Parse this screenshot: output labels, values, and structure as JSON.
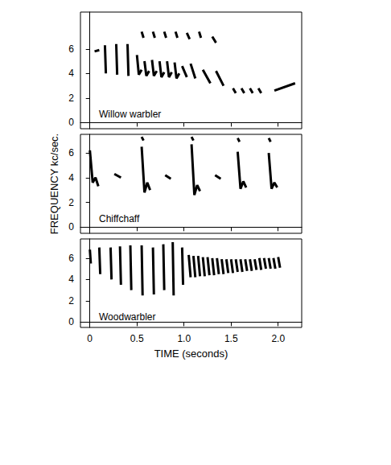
{
  "chart_data": [
    {
      "type": "line",
      "title": "Willow warbler",
      "color": "#000000",
      "grid": false,
      "tick_labels": "y",
      "xlim": [
        -0.1,
        2.25
      ],
      "xticks": [
        0,
        0.5,
        {
          "value": 1,
          "label": "1.0"
        },
        1.5,
        {
          "value": 2,
          "label": "2.0"
        }
      ],
      "ylim": [
        -0.5,
        9
      ],
      "yticks": [
        0,
        2,
        4,
        6
      ],
      "x": [
        0.05,
        0.1,
        null,
        0.16,
        0.17,
        null,
        0.28,
        0.29,
        null,
        0.4,
        0.41,
        null,
        0.5,
        0.52,
        0.55,
        null,
        0.58,
        0.6,
        0.63,
        null,
        0.66,
        0.68,
        0.71,
        null,
        0.74,
        0.76,
        0.79,
        null,
        0.82,
        0.84,
        0.87,
        null,
        0.9,
        0.92,
        0.95,
        null,
        0.98,
        1.03,
        null,
        1.07,
        1.12,
        null,
        1.2,
        1.28,
        null,
        1.34,
        1.42,
        null,
        1.52,
        1.55,
        null,
        1.61,
        1.64,
        null,
        1.7,
        1.73,
        null,
        1.79,
        1.82,
        null,
        1.96,
        2.18,
        null,
        0.55,
        0.57,
        null,
        0.67,
        0.69,
        null,
        0.79,
        0.81,
        null,
        0.91,
        0.93,
        null,
        1.03,
        1.06,
        null,
        1.16,
        1.18,
        null,
        1.3,
        1.34
      ],
      "values": [
        5.8,
        5.9,
        null,
        6.3,
        4.0,
        null,
        6.4,
        3.9,
        null,
        6.4,
        3.8,
        null,
        5.5,
        3.9,
        4.3,
        null,
        5.0,
        3.8,
        4.2,
        null,
        5.1,
        3.8,
        4.2,
        null,
        5.0,
        3.7,
        4.1,
        null,
        5.0,
        3.7,
        4.1,
        null,
        4.9,
        3.6,
        4.0,
        null,
        4.6,
        3.7,
        null,
        4.8,
        3.6,
        null,
        4.3,
        3.2,
        null,
        4.2,
        3.0,
        null,
        2.8,
        2.4,
        null,
        2.8,
        2.4,
        null,
        2.8,
        2.4,
        null,
        2.8,
        2.4,
        null,
        2.6,
        3.2,
        null,
        7.4,
        6.9,
        null,
        7.4,
        6.9,
        null,
        7.4,
        6.9,
        null,
        7.4,
        6.9,
        null,
        7.3,
        6.8,
        null,
        7.4,
        6.9,
        null,
        7.0,
        6.5
      ]
    },
    {
      "type": "line",
      "title": "Chiffchaff",
      "color": "#000000",
      "grid": false,
      "tick_labels": "y",
      "ylabel": "FREQUENCY kc/sec.",
      "xlim": [
        -0.1,
        2.25
      ],
      "xticks": [
        0,
        0.5,
        {
          "value": 1,
          "label": "1.0"
        },
        1.5,
        {
          "value": 2,
          "label": "2.0"
        }
      ],
      "ylim": [
        -0.5,
        7.5
      ],
      "yticks": [
        0,
        2,
        4,
        6
      ],
      "x": [
        0.0,
        0.03,
        0.06,
        0.09,
        null,
        0.26,
        0.33,
        null,
        0.55,
        0.58,
        0.61,
        0.64,
        null,
        0.8,
        0.86,
        null,
        1.08,
        1.11,
        1.14,
        1.17,
        null,
        1.33,
        1.39,
        null,
        1.57,
        1.6,
        1.63,
        1.66,
        null,
        1.9,
        1.93,
        1.96,
        1.99,
        null,
        0.55,
        0.57,
        null,
        1.08,
        1.1,
        null,
        1.57,
        1.59,
        null,
        1.9,
        1.92
      ],
      "values": [
        6.2,
        3.6,
        4.0,
        3.3,
        null,
        4.3,
        4.0,
        null,
        6.5,
        2.8,
        3.6,
        3.0,
        null,
        4.2,
        3.9,
        null,
        6.7,
        2.6,
        3.4,
        2.9,
        null,
        4.2,
        3.9,
        null,
        6.1,
        3.1,
        3.7,
        3.2,
        null,
        6.0,
        3.1,
        3.6,
        3.2,
        null,
        7.3,
        7.0,
        null,
        7.3,
        7.0,
        null,
        7.2,
        6.9,
        null,
        7.2,
        6.9
      ]
    },
    {
      "type": "line",
      "title": "Woodwarbler",
      "color": "#000000",
      "grid": false,
      "xlabel": "TIME (seconds)",
      "xlim": [
        -0.1,
        2.25
      ],
      "xticks": [
        0,
        0.5,
        {
          "value": 1,
          "label": "1.0"
        },
        1.5,
        {
          "value": 2,
          "label": "2.0"
        }
      ],
      "ylim": [
        -0.5,
        7.8
      ],
      "yticks": [
        0,
        2,
        4,
        6
      ],
      "x": [
        0.0,
        0.01,
        null,
        0.1,
        0.11,
        null,
        0.22,
        0.23,
        null,
        0.32,
        0.33,
        null,
        0.43,
        0.44,
        null,
        0.55,
        0.56,
        null,
        0.67,
        0.68,
        null,
        0.78,
        0.79,
        null,
        0.88,
        0.89,
        null,
        0.98,
        0.99,
        null,
        1.05,
        1.07,
        null,
        1.1,
        1.12,
        null,
        1.15,
        1.17,
        null,
        1.2,
        1.22,
        null,
        1.25,
        1.27,
        null,
        1.3,
        1.32,
        null,
        1.35,
        1.37,
        null,
        1.4,
        1.42,
        null,
        1.45,
        1.47,
        null,
        1.5,
        1.52,
        null,
        1.55,
        1.57,
        null,
        1.6,
        1.62,
        null,
        1.65,
        1.67,
        null,
        1.7,
        1.72,
        null,
        1.75,
        1.77,
        null,
        1.8,
        1.82,
        null,
        1.85,
        1.87,
        null,
        1.9,
        1.92,
        null,
        1.95,
        1.97,
        null,
        2.0,
        2.02
      ],
      "values": [
        6.8,
        5.5,
        null,
        7.0,
        4.5,
        null,
        7.0,
        4.0,
        null,
        7.1,
        3.5,
        null,
        7.2,
        3.0,
        null,
        7.2,
        2.5,
        null,
        7.0,
        2.6,
        null,
        7.3,
        3.0,
        null,
        7.5,
        2.5,
        null,
        7.0,
        3.5,
        null,
        6.3,
        4.2,
        null,
        6.2,
        4.2,
        null,
        6.2,
        4.3,
        null,
        6.1,
        4.3,
        null,
        6.1,
        4.4,
        null,
        6.0,
        4.4,
        null,
        6.0,
        4.5,
        null,
        5.9,
        4.5,
        null,
        5.9,
        4.6,
        null,
        5.9,
        4.6,
        null,
        5.9,
        4.7,
        null,
        5.9,
        4.7,
        null,
        5.9,
        4.8,
        null,
        5.9,
        4.8,
        null,
        5.9,
        4.9,
        null,
        6.0,
        4.9,
        null,
        6.0,
        5.0,
        null,
        6.0,
        5.0,
        null,
        6.0,
        5.0,
        null,
        6.1,
        5.1
      ]
    }
  ]
}
